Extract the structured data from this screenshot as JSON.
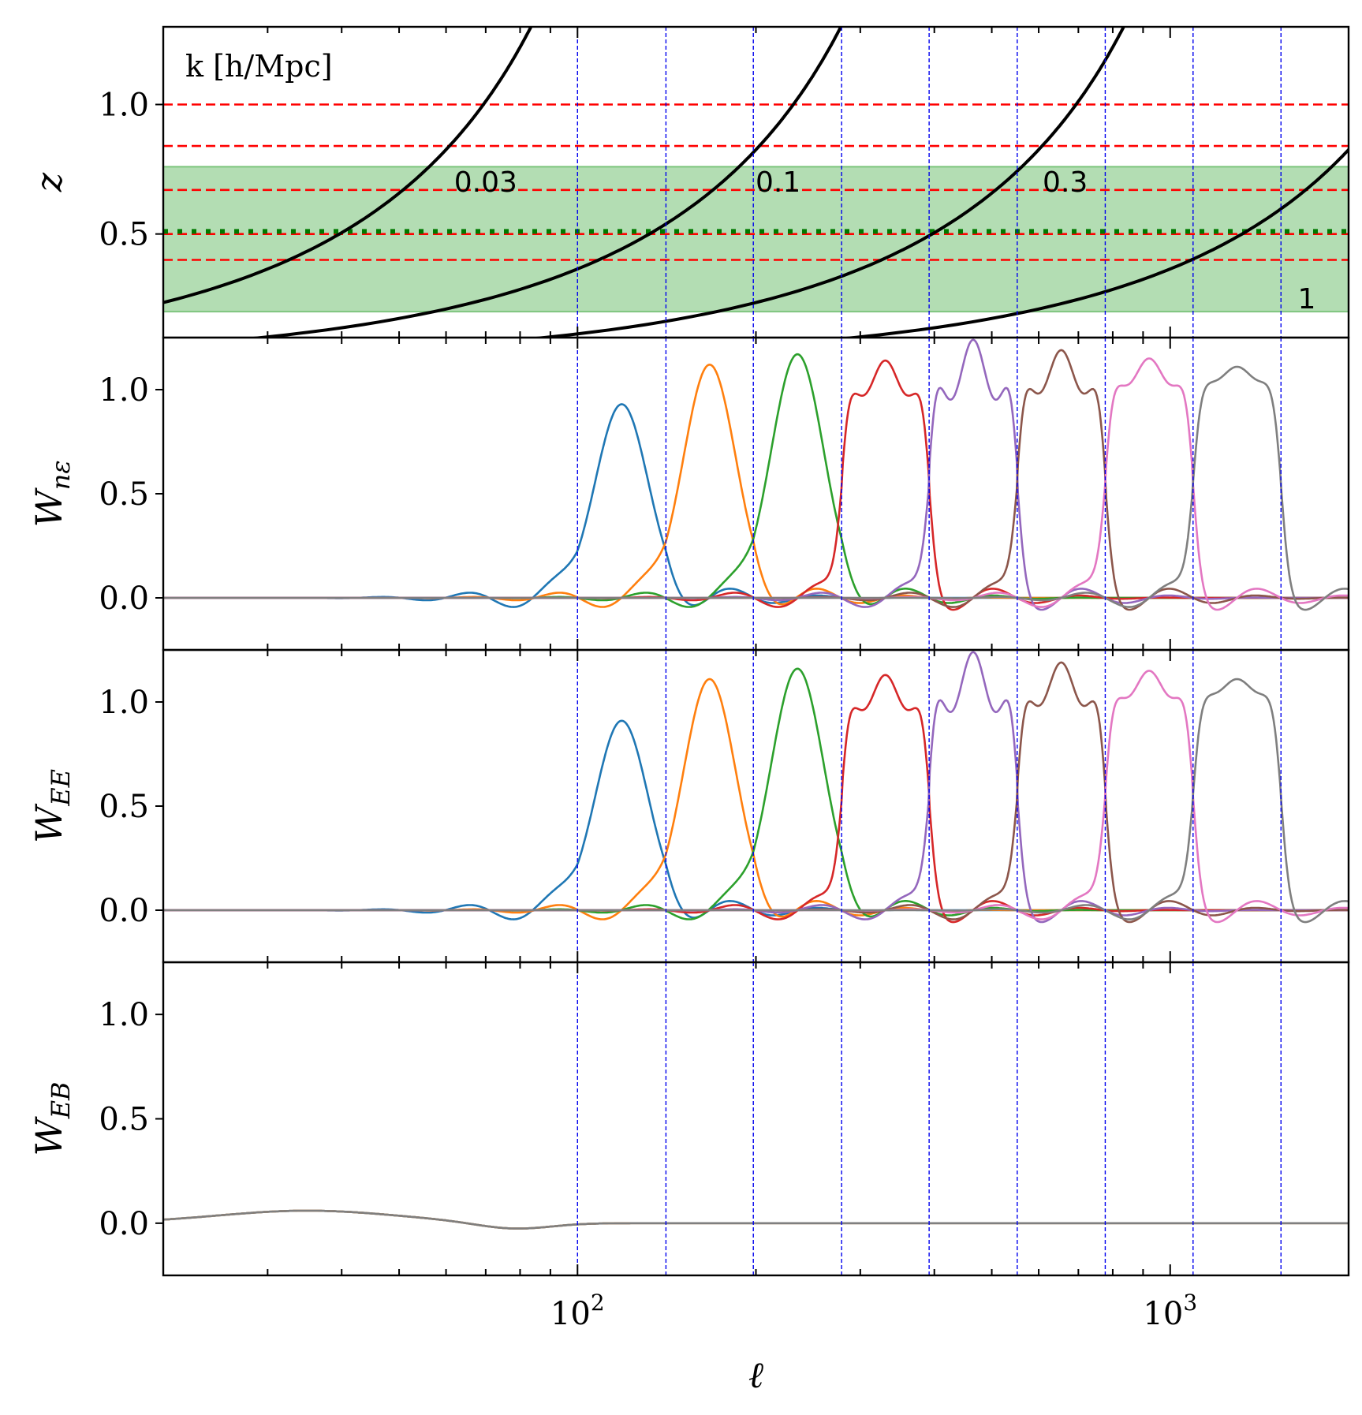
{
  "chart_data": {
    "type": "line",
    "xscale": "log",
    "xlim": [
      20,
      2000
    ],
    "xlabel": "ℓ",
    "x_tick_labels": [
      {
        "value": 100,
        "base": "10",
        "exp": "2"
      },
      {
        "value": 1000,
        "base": "10",
        "exp": "3"
      }
    ],
    "bin_edges": [
      100,
      141,
      198,
      279,
      392,
      552,
      777,
      1093,
      1538
    ],
    "panels": [
      {
        "id": "z_panel",
        "ylabel": "z",
        "ylim": [
          0.1,
          1.3
        ],
        "yticks": [
          0.5,
          1.0
        ],
        "ytick_labels": [
          "0.5",
          "1.0"
        ],
        "k_title": "k [h/Mpc]",
        "k_curves": [
          {
            "label": "0.03",
            "k": 0.03,
            "label_x": 70,
            "label_z": 0.7
          },
          {
            "label": "0.1",
            "k": 0.1,
            "label_x": 218,
            "label_z": 0.7
          },
          {
            "label": "0.3",
            "k": 0.3,
            "label_x": 665,
            "label_z": 0.7
          },
          {
            "label": "1",
            "k": 1,
            "label_x": 1700,
            "label_z": 0.25
          }
        ],
        "z_lines_red": [
          0.4,
          0.5,
          0.67,
          0.84,
          1.0
        ],
        "z_line_green": 0.51,
        "z_band": [
          0.2,
          0.76
        ]
      },
      {
        "id": "W_ne_panel",
        "ylabel": "W_nε",
        "ylim": [
          -0.25,
          1.25
        ],
        "yticks": [
          0.0,
          0.5,
          1.0
        ],
        "ytick_labels": [
          "0.0",
          "0.5",
          "1.0"
        ],
        "series": [
          {
            "color": "#1f77b4",
            "window": [
              100,
              141
            ],
            "peak": 0.93,
            "ripple": 0.0
          },
          {
            "color": "#ff7f0e",
            "window": [
              141,
              198
            ],
            "peak": 1.12,
            "ripple": 0.0
          },
          {
            "color": "#2ca02c",
            "window": [
              198,
              279
            ],
            "peak": 1.17,
            "ripple": 0.0
          },
          {
            "color": "#d62728",
            "window": [
              279,
              392
            ],
            "peak": 1.06,
            "ripple": 0.08
          },
          {
            "color": "#9467bd",
            "window": [
              392,
              552
            ],
            "peak": 1.1,
            "ripple": 0.14
          },
          {
            "color": "#8c564b",
            "window": [
              552,
              777
            ],
            "peak": 1.09,
            "ripple": 0.1
          },
          {
            "color": "#e377c2",
            "window": [
              777,
              1093
            ],
            "peak": 1.09,
            "ripple": 0.06
          },
          {
            "color": "#7f7f7f",
            "window": [
              1093,
              1538
            ],
            "peak": 1.08,
            "ripple": 0.03
          }
        ]
      },
      {
        "id": "W_EE_panel",
        "ylabel": "W_EE",
        "ylim": [
          -0.25,
          1.25
        ],
        "yticks": [
          0.0,
          0.5,
          1.0
        ],
        "ytick_labels": [
          "0.0",
          "0.5",
          "1.0"
        ],
        "series": [
          {
            "color": "#1f77b4",
            "window": [
              100,
              141
            ],
            "peak": 0.91,
            "ripple": 0.0
          },
          {
            "color": "#ff7f0e",
            "window": [
              141,
              198
            ],
            "peak": 1.11,
            "ripple": 0.0
          },
          {
            "color": "#2ca02c",
            "window": [
              198,
              279
            ],
            "peak": 1.16,
            "ripple": 0.0
          },
          {
            "color": "#d62728",
            "window": [
              279,
              392
            ],
            "peak": 1.05,
            "ripple": 0.08
          },
          {
            "color": "#9467bd",
            "window": [
              392,
              552
            ],
            "peak": 1.1,
            "ripple": 0.14
          },
          {
            "color": "#8c564b",
            "window": [
              552,
              777
            ],
            "peak": 1.09,
            "ripple": 0.1
          },
          {
            "color": "#e377c2",
            "window": [
              777,
              1093
            ],
            "peak": 1.09,
            "ripple": 0.06
          },
          {
            "color": "#7f7f7f",
            "window": [
              1093,
              1538
            ],
            "peak": 1.08,
            "ripple": 0.03
          }
        ]
      },
      {
        "id": "W_EB_panel",
        "ylabel": "W_EB",
        "ylim": [
          -0.25,
          1.25
        ],
        "yticks": [
          0.0,
          0.5,
          1.0
        ],
        "ytick_labels": [
          "0.0",
          "0.5",
          "1.0"
        ],
        "series": [
          {
            "color": "#1f77b4",
            "window": [
              100,
              141
            ],
            "peak": 0.0,
            "ripple": 0.0
          },
          {
            "color": "#ff7f0e",
            "window": [
              141,
              198
            ],
            "peak": 0.0,
            "ripple": 0.0
          },
          {
            "color": "#7f7f7f",
            "window": [
              1093,
              1538
            ],
            "peak": 0.0,
            "ripple": 0.0
          }
        ]
      }
    ]
  }
}
